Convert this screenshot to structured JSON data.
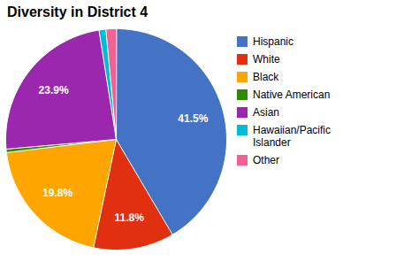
{
  "chart_data": {
    "type": "pie",
    "title": "Diversity in District 4",
    "categories": [
      "Hispanic",
      "White",
      "Black",
      "Native American",
      "Asian",
      "Hawaiian/Pacific\nIslander",
      "Other"
    ],
    "values": [
      41.5,
      11.8,
      19.8,
      0.5,
      23.9,
      1.0,
      1.5
    ],
    "value_labels": [
      "41.5%",
      "11.8%",
      "19.8%",
      null,
      "23.9%",
      null,
      null
    ],
    "colors": [
      "#4472C4",
      "#E03010",
      "#FFA500",
      "#2E8B00",
      "#9B27AF",
      "#00BCD4",
      "#F06292"
    ],
    "data_labels": true,
    "legend": "right"
  }
}
